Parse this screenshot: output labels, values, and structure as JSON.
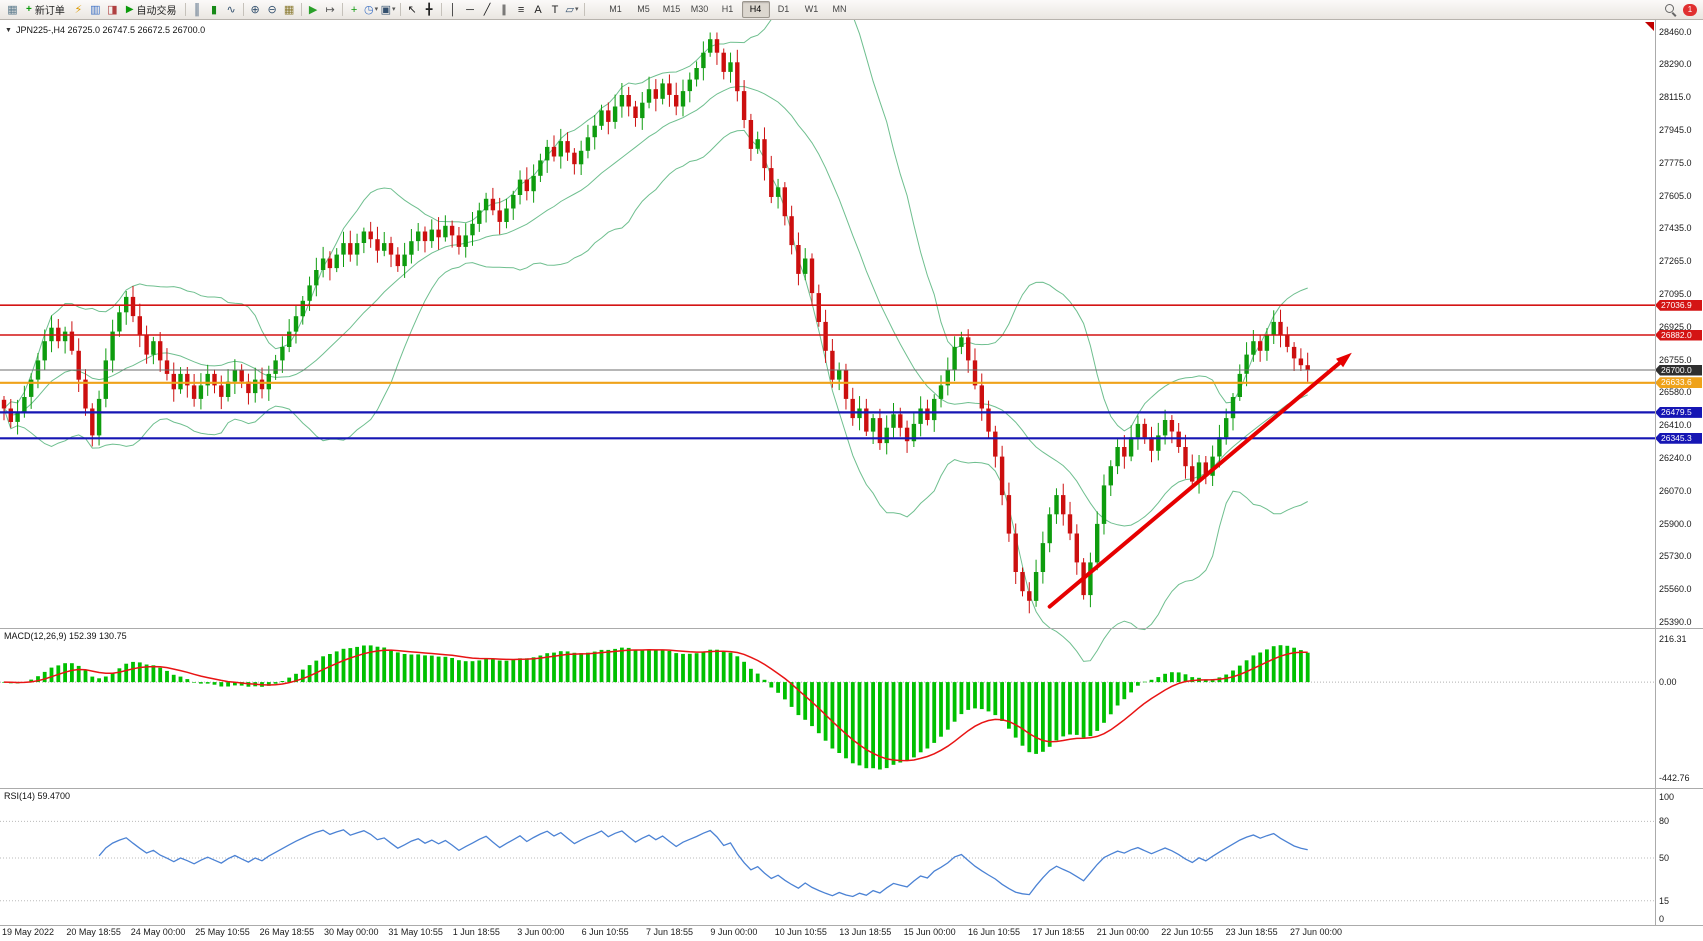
{
  "toolbar": {
    "items": [
      {
        "type": "icon",
        "name": "chart-window-icon",
        "glyph": "▦",
        "color": "#5b7a8c"
      },
      {
        "type": "button",
        "name": "new-order-button",
        "glyph": "+",
        "glyph_color": "#0b9a0b",
        "label": "新订单"
      },
      {
        "type": "icon",
        "name": "quick-trade-icon",
        "glyph": "⚡",
        "color": "#dd9900"
      },
      {
        "type": "icon",
        "name": "history-center-icon",
        "glyph": "▥",
        "color": "#3b6fc4"
      },
      {
        "type": "icon",
        "name": "market-watch-icon",
        "glyph": "◨",
        "color": "#b04040"
      },
      {
        "type": "button",
        "name": "auto-trading-button",
        "glyph": "▶",
        "glyph_color": "#0b9a0b",
        "label": "自动交易"
      },
      {
        "type": "sep"
      },
      {
        "type": "icon",
        "name": "bar-chart-icon",
        "glyph": "║",
        "color": "#33506e"
      },
      {
        "type": "icon",
        "name": "candlestick-chart-icon",
        "glyph": "▮",
        "color": "#178a17"
      },
      {
        "type": "icon",
        "name": "line-chart-icon",
        "glyph": "∿",
        "color": "#33506e"
      },
      {
        "type": "sep"
      },
      {
        "type": "icon",
        "name": "zoom-in-icon",
        "glyph": "⊕",
        "color": "#33506e"
      },
      {
        "type": "icon",
        "name": "zoom-out-icon",
        "glyph": "⊖",
        "color": "#33506e"
      },
      {
        "type": "icon",
        "name": "tile-windows-icon",
        "glyph": "▦",
        "color": "#8a7a30"
      },
      {
        "type": "sep"
      },
      {
        "type": "icon",
        "name": "auto-scroll-icon",
        "glyph": "▶",
        "color": "#2aa02a"
      },
      {
        "type": "icon",
        "name": "chart-shift-icon",
        "glyph": "↦",
        "color": "#555555"
      },
      {
        "type": "sep"
      },
      {
        "type": "icon",
        "name": "indicators-icon",
        "glyph": "+",
        "color": "#0b9a0b"
      },
      {
        "type": "icon",
        "name": "periods-icon",
        "glyph": "◷",
        "color": "#3b6fc4",
        "caret": "▾"
      },
      {
        "type": "icon",
        "name": "templates-icon",
        "glyph": "▣",
        "color": "#33506e",
        "caret": "▾"
      },
      {
        "type": "sep"
      },
      {
        "type": "icon",
        "name": "cursor-icon",
        "glyph": "↖",
        "color": "#222222"
      },
      {
        "type": "icon",
        "name": "crosshair-icon",
        "glyph": "╋",
        "color": "#222222"
      },
      {
        "type": "sep"
      },
      {
        "type": "icon",
        "name": "vertical-line-icon",
        "glyph": "│",
        "color": "#222222"
      },
      {
        "type": "icon",
        "name": "horizontal-line-icon",
        "glyph": "─",
        "color": "#222222"
      },
      {
        "type": "icon",
        "name": "trendline-icon",
        "glyph": "╱",
        "color": "#222222"
      },
      {
        "type": "icon",
        "name": "channel-icon",
        "glyph": "∥",
        "color": "#222222"
      },
      {
        "type": "icon",
        "name": "fibonacci-icon",
        "glyph": "≡",
        "color": "#222222"
      },
      {
        "type": "icon",
        "name": "text-tool-icon",
        "glyph": "A",
        "color": "#222222"
      },
      {
        "type": "icon",
        "name": "label-tool-icon",
        "glyph": "T",
        "color": "#222222"
      },
      {
        "type": "icon",
        "name": "shapes-icon",
        "glyph": "▱",
        "color": "#33506e",
        "caret": "▾"
      },
      {
        "type": "sep"
      }
    ],
    "timeframes": [
      "M1",
      "M5",
      "M15",
      "M30",
      "H1",
      "H4",
      "D1",
      "W1",
      "MN"
    ],
    "active_timeframe": "H4",
    "badge": {
      "label": "1"
    }
  },
  "chart": {
    "collapse_icon": "▼",
    "title_text": "JPN225-,H4  26725.0 26747.5 26672.5 26700.0"
  },
  "chart_data": {
    "type": "candlestick",
    "symbol": "JPN225-",
    "period": "H4",
    "last_candle": {
      "open": 26725.0,
      "high": 26747.5,
      "low": 26672.5,
      "close": 26700.0
    },
    "ylim": [
      25390,
      28460
    ],
    "price_ticks": [
      "28460.0",
      "28290.0",
      "28115.0",
      "27945.0",
      "27775.0",
      "27605.0",
      "27435.0",
      "27265.0",
      "27095.0",
      "26925.0",
      "26755.0",
      "26580.0",
      "26410.0",
      "26240.0",
      "26070.0",
      "25900.0",
      "25730.0",
      "25560.0",
      "25390.0"
    ],
    "candle_up_color": "#0e9c0e",
    "candle_down_color": "#cc0f0f",
    "closes": [
      26500,
      26430,
      26480,
      26560,
      26650,
      26750,
      26850,
      26920,
      26850,
      26900,
      26800,
      26650,
      26500,
      26360,
      26550,
      26750,
      26900,
      27000,
      27080,
      26980,
      26880,
      26780,
      26850,
      26750,
      26680,
      26600,
      26680,
      26620,
      26550,
      26620,
      26680,
      26620,
      26560,
      26640,
      26700,
      26640,
      26580,
      26650,
      26600,
      26680,
      26750,
      26820,
      26900,
      26980,
      27060,
      27140,
      27220,
      27280,
      27230,
      27300,
      27360,
      27300,
      27360,
      27420,
      27380,
      27320,
      27360,
      27300,
      27240,
      27300,
      27370,
      27420,
      27370,
      27430,
      27390,
      27450,
      27400,
      27340,
      27400,
      27460,
      27530,
      27590,
      27530,
      27470,
      27540,
      27610,
      27690,
      27630,
      27710,
      27790,
      27860,
      27810,
      27890,
      27830,
      27770,
      27840,
      27910,
      27970,
      28050,
      27990,
      28070,
      28130,
      28070,
      28010,
      28090,
      28160,
      28110,
      28190,
      28130,
      28070,
      28150,
      28210,
      28270,
      28350,
      28420,
      28350,
      28250,
      28300,
      28150,
      28000,
      27850,
      27900,
      27750,
      27600,
      27650,
      27500,
      27350,
      27200,
      27280,
      27100,
      26950,
      26800,
      26650,
      26700,
      26550,
      26450,
      26500,
      26380,
      26450,
      26320,
      26400,
      26470,
      26400,
      26330,
      26420,
      26500,
      26440,
      26550,
      26620,
      26700,
      26820,
      26870,
      26750,
      26620,
      26500,
      26380,
      26250,
      26050,
      25850,
      25650,
      25550,
      25500,
      25650,
      25800,
      25950,
      26050,
      25950,
      25850,
      25700,
      25530,
      25700,
      25900,
      26100,
      26200,
      26300,
      26250,
      26350,
      26420,
      26350,
      26280,
      26360,
      26440,
      26380,
      26300,
      26200,
      26120,
      26220,
      26150,
      26250,
      26350,
      26450,
      26560,
      26680,
      26780,
      26850,
      26800,
      26880,
      26950,
      26880,
      26820,
      26760,
      26725,
      26700
    ],
    "bollinger": {
      "period": 20,
      "deviation": 2.0,
      "color": "#6fbf8f"
    },
    "levels": [
      {
        "price": 27036.9,
        "label": "27036.9",
        "color": "#d41414",
        "tag_bg": "#d41414",
        "width": 1.6
      },
      {
        "price": 26882.0,
        "label": "26882.0",
        "color": "#d41414",
        "tag_bg": "#d41414",
        "width": 1.6
      },
      {
        "price": 26700.0,
        "label": "26700.0",
        "color": "#6e6e6e",
        "tag_bg": "#2f2f2f",
        "width": 1.1
      },
      {
        "price": 26633.6,
        "label": "26633.6",
        "color": "#efa21a",
        "tag_bg": "#efa21a",
        "width": 2.2
      },
      {
        "price": 26479.5,
        "label": "26479.5",
        "color": "#1616b4",
        "tag_bg": "#1616b4",
        "width": 2.2
      },
      {
        "price": 26345.3,
        "label": "26345.3",
        "color": "#1616b4",
        "tag_bg": "#1616b4",
        "width": 2.2
      }
    ],
    "trend_arrow": {
      "from_index": 154,
      "from_price": 25470,
      "to_index": 198.5,
      "to_price": 26790,
      "color": "#e60000"
    },
    "macd": {
      "label": "MACD(12,26,9) 152.39 130.75",
      "fast": 12,
      "slow": 26,
      "signal": 9,
      "value": 152.39,
      "signal_value": 130.75,
      "ylim": [
        -442.76,
        216.31
      ],
      "axis_ticks": [
        "216.31",
        "0.00",
        "-442.76"
      ],
      "histogram_color": "#00c000",
      "signal_color": "#e81414"
    },
    "rsi": {
      "label": "RSI(14) 59.4700",
      "period": 14,
      "value": 59.47,
      "axis_ticks": [
        "100",
        "80",
        "50",
        "15",
        "0"
      ],
      "levels": [
        80,
        50,
        15
      ],
      "color": "#4b82d4"
    },
    "dates": [
      "19 May 2022",
      "20 May 18:55",
      "24 May 00:00",
      "25 May 10:55",
      "26 May 18:55",
      "30 May 00:00",
      "31 May 10:55",
      "1 Jun 18:55",
      "3 Jun 00:00",
      "6 Jun 10:55",
      "7 Jun 18:55",
      "9 Jun 00:00",
      "10 Jun 10:55",
      "13 Jun 18:55",
      "15 Jun 00:00",
      "16 Jun 10:55",
      "17 Jun 18:55",
      "21 Jun 00:00",
      "22 Jun 10:55",
      "23 Jun 18:55",
      "27 Jun 00:00"
    ]
  }
}
